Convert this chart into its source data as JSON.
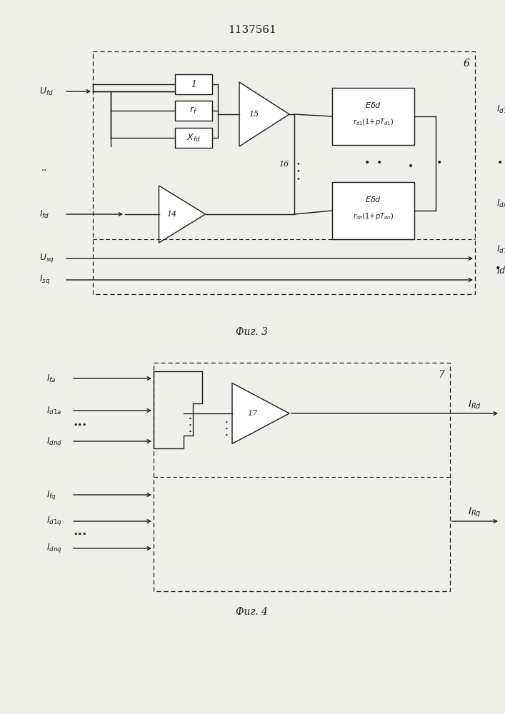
{
  "title": "1137561",
  "fig3_label": "Фиг. 3",
  "fig4_label": "Фиг. 4",
  "bg_color": "#f0f0eb",
  "line_color": "#1a1a1a"
}
